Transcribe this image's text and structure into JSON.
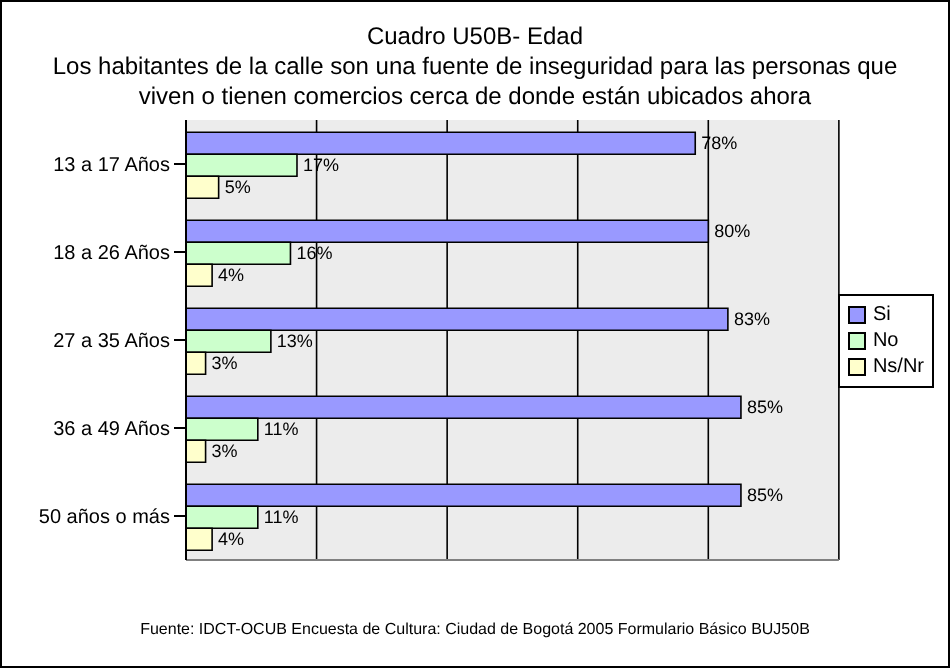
{
  "chart_data": {
    "type": "bar",
    "orientation": "horizontal",
    "title": "Cuadro U50B- Edad",
    "subtitle": "Los habitantes de la calle son una fuente de inseguridad para las personas que viven o tienen comercios cerca de donde están ubicados ahora",
    "categories": [
      "13 a 17 Años",
      "18 a 26 Años",
      "27 a 35 Años",
      "36 a 49 Años",
      "50 años o más"
    ],
    "series": [
      {
        "name": "Si",
        "color": "#9999ff",
        "values": [
          78,
          80,
          83,
          85,
          85
        ],
        "value_labels": [
          "78%",
          "80%",
          "83%",
          "85%",
          "85%"
        ]
      },
      {
        "name": "No",
        "color": "#ccffcc",
        "values": [
          17,
          16,
          13,
          11,
          11
        ],
        "value_labels": [
          "17%",
          "16%",
          "13%",
          "11%",
          "11%"
        ]
      },
      {
        "name": "Ns/Nr",
        "color": "#ffffcc",
        "values": [
          5,
          4,
          3,
          3,
          4
        ],
        "value_labels": [
          "5%",
          "4%",
          "3%",
          "3%",
          "4%"
        ]
      }
    ],
    "xlim": [
      0,
      100
    ],
    "xticks": [
      {
        "value": 0,
        "label": null
      },
      {
        "value": 20,
        "label": null
      },
      {
        "value": 40,
        "label": null
      },
      {
        "value": 60,
        "label": null
      },
      {
        "value": 80,
        "label": null
      },
      {
        "value": 100,
        "label": null
      }
    ],
    "grid": "x",
    "legend": "right",
    "tick_labels": "y",
    "annotations": [
      "Fuente: IDCT-OCUB Encuesta de Cultura: Ciudad de Bogotá 2005 Formulario Básico BUJ50B"
    ]
  }
}
